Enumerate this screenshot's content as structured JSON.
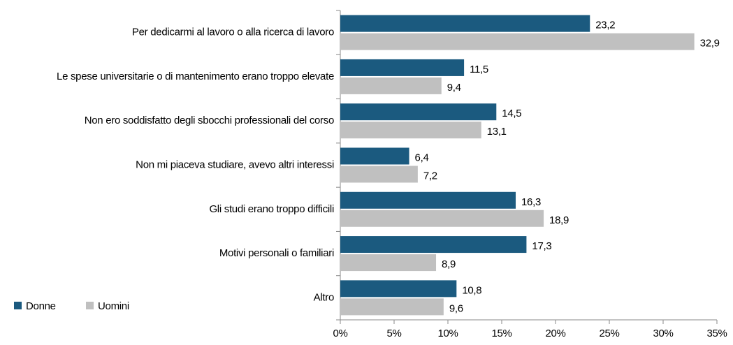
{
  "chart_data": {
    "type": "hbar",
    "categories": [
      "Per dedicarmi al lavoro o alla ricerca di lavoro",
      "Le spese universitarie o di mantenimento erano troppo elevate",
      "Non ero soddisfatto degli sbocchi professionali del corso",
      "Non mi piaceva studiare, avevo altri interessi",
      "Gli studi erano troppo difficili",
      "Motivi personali o familiari",
      "Altro"
    ],
    "series": [
      {
        "name": "Donne",
        "color": "#1b5a7f",
        "values": [
          23.2,
          11.5,
          14.5,
          6.4,
          16.3,
          17.3,
          10.8
        ],
        "value_labels": [
          "23,2",
          "11,5",
          "14,5",
          "6,4",
          "16,3",
          "17,3",
          "10,8"
        ]
      },
      {
        "name": "Uomini",
        "color": "#c0c0c0",
        "values": [
          32.9,
          9.4,
          13.1,
          7.2,
          18.9,
          8.9,
          9.6
        ],
        "value_labels": [
          "32,9",
          "9,4",
          "13,1",
          "7,2",
          "18,9",
          "8,9",
          "9,6"
        ]
      }
    ],
    "xlim": [
      0,
      35
    ],
    "xticks": [
      {
        "value": 0,
        "label": "0%"
      },
      {
        "value": 5,
        "label": "5%"
      },
      {
        "value": 10,
        "label": "10%"
      },
      {
        "value": 15,
        "label": "15%"
      },
      {
        "value": 20,
        "label": "20%"
      },
      {
        "value": 25,
        "label": "25%"
      },
      {
        "value": 30,
        "label": "30%"
      },
      {
        "value": 35,
        "label": "35%"
      }
    ],
    "legend": "bottom-left"
  }
}
